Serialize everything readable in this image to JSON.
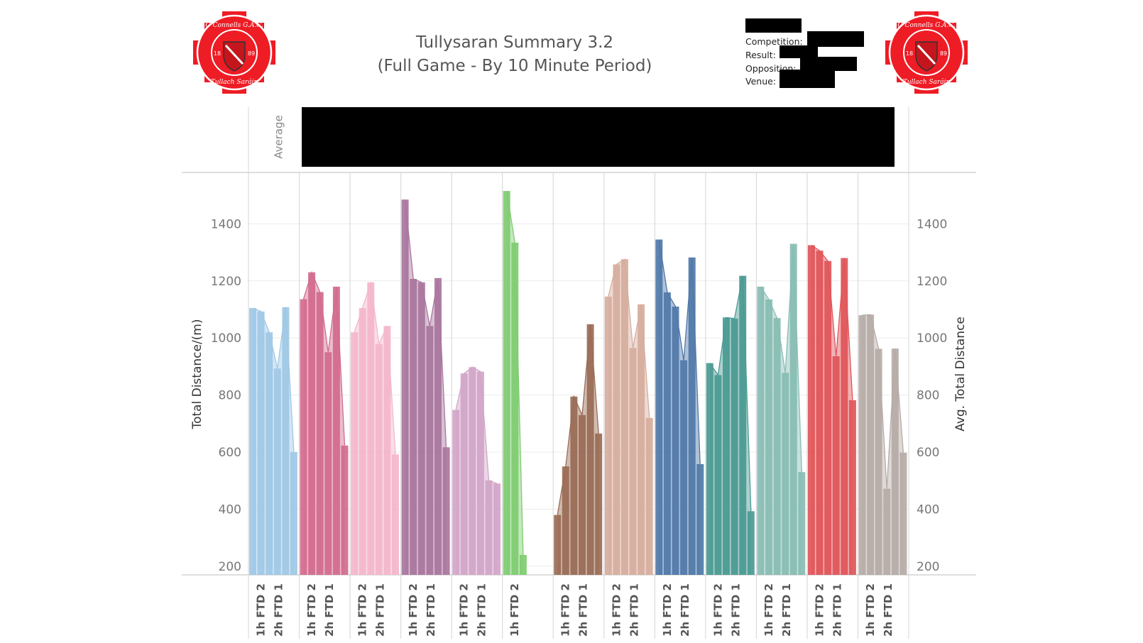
{
  "header": {
    "title_line1": "Tullysaran Summary 3.2",
    "title_line2": "(Full Game - By 10 Minute Period)",
    "info_labels": [
      "Competition:",
      "Result:",
      "Opposition:",
      "Venue:"
    ],
    "logo_text_top": "O Connells G.A.C.",
    "logo_text_bottom": "Tullach Saráin",
    "logo_year_left": "18",
    "logo_year_right": "89"
  },
  "chart_data": {
    "type": "bar",
    "title": "Tullysaran Summary 3.2 (Full Game - By 10 Minute Period)",
    "column_header": "Average",
    "ylabel": "Total Distance/(m)",
    "ylabel_right": "Avg. Total Distance",
    "ylim": [
      170,
      1580
    ],
    "yticks": [
      200,
      400,
      600,
      800,
      1000,
      1200,
      1400
    ],
    "grid": true,
    "x_tick_labels": [
      "1h FTD 2",
      "2h FTD 1"
    ],
    "colors": [
      "#9fc8e6",
      "#d26b8e",
      "#f5b6cb",
      "#a9759d",
      "#d3a5c8",
      "#7fcc70",
      "#996b55",
      "#d6ad9d",
      "#4f78a8",
      "#4a9a93",
      "#88bdb3",
      "#e05558",
      "#b6aba6"
    ],
    "series": [
      {
        "values": [
          1105,
          1093,
          1020,
          893,
          1108,
          600
        ]
      },
      {
        "values": [
          1136,
          1230,
          1161,
          950,
          1180,
          623
        ]
      },
      {
        "values": [
          1020,
          1105,
          1195,
          979,
          1042,
          592
        ]
      },
      {
        "values": [
          1485,
          1207,
          1195,
          1042,
          1210,
          617
        ]
      },
      {
        "values": [
          748,
          876,
          898,
          882,
          501,
          490
        ]
      },
      {
        "values": [
          1515,
          1334,
          240
        ]
      },
      {
        "values": [
          380,
          550,
          795,
          730,
          1048,
          665
        ]
      },
      {
        "values": [
          1145,
          1258,
          1276,
          965,
          1118,
          720
        ]
      },
      {
        "values": [
          1345,
          1160,
          1110,
          922,
          1282,
          558
        ]
      },
      {
        "values": [
          912,
          870,
          1072,
          1068,
          1218,
          393
        ]
      },
      {
        "values": [
          1180,
          1135,
          1070,
          878,
          1330,
          530
        ]
      },
      {
        "values": [
          1325,
          1306,
          1270,
          936,
          1280,
          782
        ]
      },
      {
        "values": [
          1080,
          1082,
          962,
          472,
          963,
          598
        ]
      }
    ]
  }
}
